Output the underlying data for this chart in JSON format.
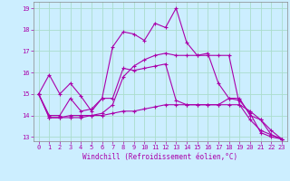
{
  "xlabel": "Windchill (Refroidissement éolien,°C)",
  "ylabel": "",
  "background_color": "#cceeff",
  "grid_color": "#aaddcc",
  "line_color": "#aa00aa",
  "xlim": [
    -0.5,
    23.5
  ],
  "ylim": [
    12.8,
    19.3
  ],
  "xticks": [
    0,
    1,
    2,
    3,
    4,
    5,
    6,
    7,
    8,
    9,
    10,
    11,
    12,
    13,
    14,
    15,
    16,
    17,
    18,
    19,
    20,
    21,
    22,
    23
  ],
  "yticks": [
    13,
    14,
    15,
    16,
    17,
    18,
    19
  ],
  "series": [
    [
      15.0,
      15.9,
      15.0,
      15.5,
      14.9,
      14.2,
      14.8,
      17.2,
      17.9,
      17.8,
      17.5,
      18.3,
      18.1,
      19.0,
      17.4,
      16.8,
      16.9,
      15.5,
      14.8,
      14.7,
      14.1,
      13.2,
      13.0,
      12.9
    ],
    [
      15.0,
      14.0,
      14.0,
      14.8,
      14.2,
      14.3,
      14.8,
      14.8,
      16.2,
      16.1,
      16.2,
      16.3,
      16.4,
      14.7,
      14.5,
      14.5,
      14.5,
      14.5,
      14.8,
      14.8,
      14.0,
      13.8,
      13.1,
      12.9
    ],
    [
      15.0,
      13.9,
      13.9,
      13.9,
      13.9,
      14.0,
      14.0,
      14.1,
      14.2,
      14.2,
      14.3,
      14.4,
      14.5,
      14.5,
      14.5,
      14.5,
      14.5,
      14.5,
      14.5,
      14.5,
      14.2,
      13.8,
      13.3,
      12.9
    ],
    [
      15.0,
      13.9,
      13.9,
      14.0,
      14.0,
      14.0,
      14.1,
      14.5,
      15.8,
      16.3,
      16.6,
      16.8,
      16.9,
      16.8,
      16.8,
      16.8,
      16.8,
      16.8,
      16.8,
      14.5,
      13.8,
      13.3,
      13.1,
      12.9
    ]
  ],
  "xlabel_fontsize": 5.5,
  "tick_fontsize": 5.0
}
